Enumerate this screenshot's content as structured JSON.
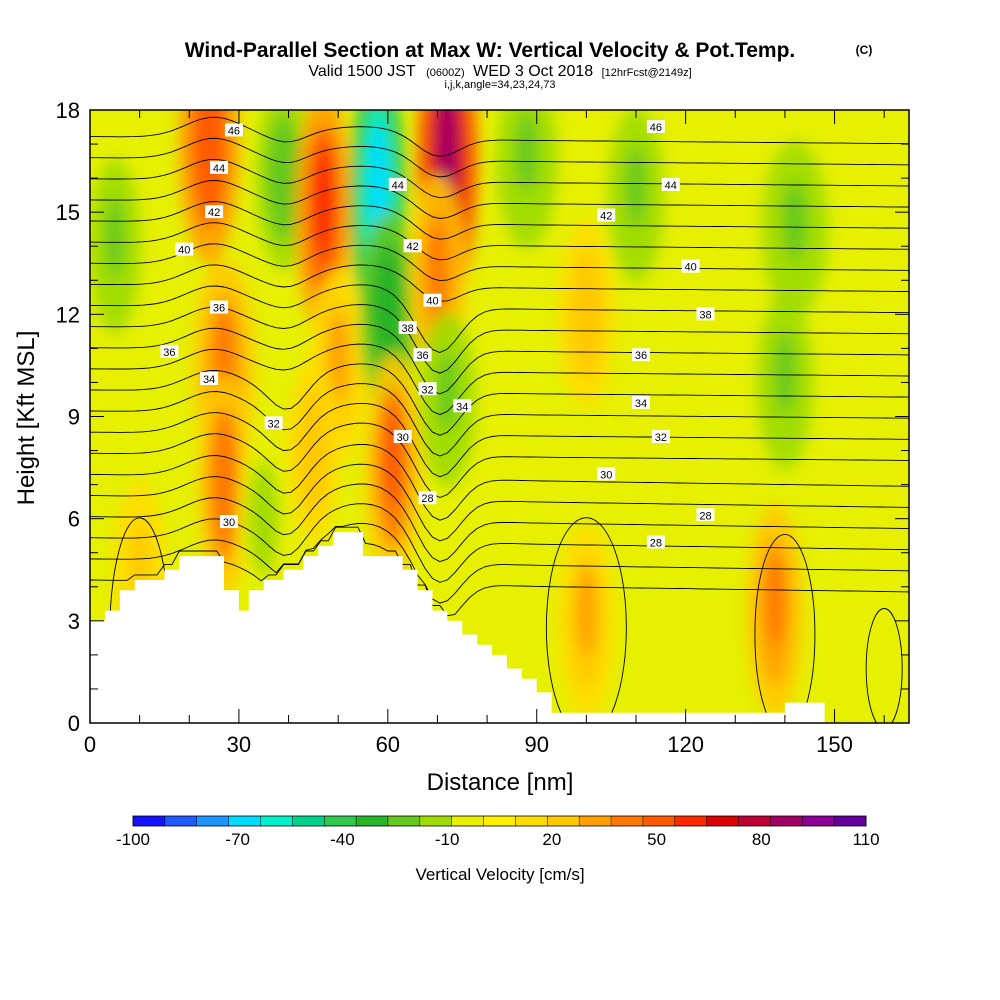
{
  "chart_data": {
    "type": "heatmap",
    "title": "Wind-Parallel Section at Max W: Vertical Velocity & Pot.Temp.",
    "title_mark": "(C)",
    "subtitle": {
      "valid": "Valid 1500 JST",
      "utc": "(0600Z)",
      "date": "WED 3 Oct 2018",
      "forecast": "[12hrFcst@2149z]"
    },
    "section_info": "i,j,k,angle=34,23,24,73",
    "xlabel": "Distance [nm]",
    "ylabel": "Height [Kft MSL]",
    "xlim": [
      0,
      165
    ],
    "ylim": [
      0,
      18
    ],
    "x_ticks": [
      "0",
      "30",
      "60",
      "90",
      "120",
      "150"
    ],
    "y_ticks": [
      "0",
      "3",
      "6",
      "9",
      "12",
      "15",
      "18"
    ],
    "colorbar": {
      "label": "Vertical Velocity [cm/s]",
      "tick_labels": [
        "-100",
        "-70",
        "-40",
        "-10",
        "20",
        "50",
        "80",
        "110"
      ],
      "colors": [
        "#1414ff",
        "#1e5aff",
        "#1e96ff",
        "#00dcff",
        "#00f0c8",
        "#00d28c",
        "#32c850",
        "#28b428",
        "#64c81e",
        "#a0dc00",
        "#e6f000",
        "#fff000",
        "#ffdc00",
        "#ffc800",
        "#ffa000",
        "#ff7800",
        "#ff5a00",
        "#ff2800",
        "#dc0000",
        "#be0032",
        "#a00064",
        "#8c0096",
        "#64009b"
      ]
    },
    "terrain": {
      "x": [
        0,
        3,
        3,
        6,
        6,
        9,
        9,
        15,
        15,
        18,
        18,
        27,
        27,
        30,
        30,
        32,
        32,
        35,
        35,
        39,
        39,
        43,
        43,
        46,
        46,
        49,
        49,
        52,
        52,
        55,
        55,
        58,
        58,
        63,
        63,
        66,
        66,
        69,
        69,
        72,
        72,
        75,
        75,
        78,
        78,
        81,
        81,
        84,
        84,
        87,
        87,
        90,
        90,
        93,
        93,
        97,
        97,
        140,
        140,
        148,
        148
      ],
      "y": [
        3.0,
        3.0,
        3.3,
        3.3,
        3.9,
        3.9,
        4.2,
        4.2,
        4.5,
        4.5,
        4.9,
        4.9,
        3.9,
        3.9,
        3.3,
        3.3,
        3.9,
        3.9,
        4.2,
        4.2,
        4.5,
        4.5,
        4.9,
        4.9,
        5.2,
        5.2,
        5.6,
        5.6,
        5.6,
        5.6,
        4.9,
        4.9,
        4.9,
        4.9,
        4.5,
        4.5,
        3.9,
        3.9,
        3.3,
        3.3,
        3.0,
        3.0,
        2.6,
        2.6,
        2.3,
        2.3,
        2.0,
        2.0,
        1.6,
        1.6,
        1.3,
        1.3,
        0.9,
        0.9,
        0.3,
        0.3,
        0.3,
        0.3,
        0.6,
        0.6,
        0.3
      ]
    },
    "velocity_features": [
      {
        "x": 24,
        "y": 17.0,
        "w": 10,
        "value": 55
      },
      {
        "x": 27,
        "y": 10.5,
        "w": 10,
        "value": 40
      },
      {
        "x": 27,
        "y": 7.0,
        "w": 8,
        "value": 45
      },
      {
        "x": 39,
        "y": 16.0,
        "w": 9,
        "value": -25
      },
      {
        "x": 47,
        "y": 15.0,
        "w": 9,
        "value": 60
      },
      {
        "x": 50,
        "y": 10.5,
        "w": 9,
        "value": 30
      },
      {
        "x": 58,
        "y": 15.5,
        "w": 9,
        "value": -70
      },
      {
        "x": 60,
        "y": 12.0,
        "w": 9,
        "value": -35
      },
      {
        "x": 72,
        "y": 16.5,
        "w": 10,
        "value": 85
      },
      {
        "x": 70,
        "y": 13.0,
        "w": 9,
        "value": 40
      },
      {
        "x": 61,
        "y": 7.5,
        "w": 9,
        "value": 50
      },
      {
        "x": 72,
        "y": 9.5,
        "w": 9,
        "value": -20
      },
      {
        "x": 88,
        "y": 16.5,
        "w": 10,
        "value": -20
      },
      {
        "x": 110,
        "y": 15.5,
        "w": 9,
        "value": -20
      },
      {
        "x": 142,
        "y": 14.5,
        "w": 11,
        "value": -20
      },
      {
        "x": 140,
        "y": 10.0,
        "w": 9,
        "value": -20
      },
      {
        "x": 138,
        "y": 3.3,
        "w": 9,
        "value": 40
      },
      {
        "x": 100,
        "y": 3.0,
        "w": 9,
        "value": 30
      },
      {
        "x": 5,
        "y": 14.0,
        "w": 8,
        "value": -20
      },
      {
        "x": 35,
        "y": 6.0,
        "w": 8,
        "value": -15
      },
      {
        "x": 45,
        "y": 8.0,
        "w": 8,
        "value": 25
      },
      {
        "x": 100,
        "y": 12.0,
        "w": 9,
        "value": 25
      },
      {
        "x": 10,
        "y": 4.5,
        "w": 8,
        "value": 20
      }
    ],
    "theta_contours": {
      "values": [
        26,
        27,
        28,
        29,
        30,
        31,
        32,
        33,
        34,
        35,
        36,
        37,
        38,
        39,
        40,
        41,
        42,
        43,
        44,
        45,
        46,
        47
      ],
      "labeled": [
        {
          "text": "46",
          "x": 29,
          "y": 17.4
        },
        {
          "text": "44",
          "x": 26,
          "y": 16.3
        },
        {
          "text": "42",
          "x": 25,
          "y": 15.0
        },
        {
          "text": "40",
          "x": 19,
          "y": 13.9
        },
        {
          "text": "36",
          "x": 26,
          "y": 12.2
        },
        {
          "text": "36",
          "x": 16,
          "y": 10.9
        },
        {
          "text": "34",
          "x": 24,
          "y": 10.1
        },
        {
          "text": "32",
          "x": 37,
          "y": 8.8
        },
        {
          "text": "30",
          "x": 28,
          "y": 5.9
        },
        {
          "text": "44",
          "x": 62,
          "y": 15.8
        },
        {
          "text": "42",
          "x": 65,
          "y": 14.0
        },
        {
          "text": "40",
          "x": 69,
          "y": 12.4
        },
        {
          "text": "38",
          "x": 64,
          "y": 11.6
        },
        {
          "text": "36",
          "x": 67,
          "y": 10.8
        },
        {
          "text": "32",
          "x": 68,
          "y": 9.8
        },
        {
          "text": "34",
          "x": 75,
          "y": 9.3
        },
        {
          "text": "30",
          "x": 63,
          "y": 8.4
        },
        {
          "text": "28",
          "x": 68,
          "y": 6.6
        },
        {
          "text": "46",
          "x": 114,
          "y": 17.5
        },
        {
          "text": "44",
          "x": 117,
          "y": 15.8
        },
        {
          "text": "42",
          "x": 104,
          "y": 14.9
        },
        {
          "text": "40",
          "x": 121,
          "y": 13.4
        },
        {
          "text": "38",
          "x": 124,
          "y": 12.0
        },
        {
          "text": "36",
          "x": 111,
          "y": 10.8
        },
        {
          "text": "34",
          "x": 111,
          "y": 9.4
        },
        {
          "text": "32",
          "x": 115,
          "y": 8.4
        },
        {
          "text": "30",
          "x": 104,
          "y": 7.3
        },
        {
          "text": "28",
          "x": 124,
          "y": 6.1
        },
        {
          "text": "28",
          "x": 114,
          "y": 5.3
        }
      ]
    }
  }
}
